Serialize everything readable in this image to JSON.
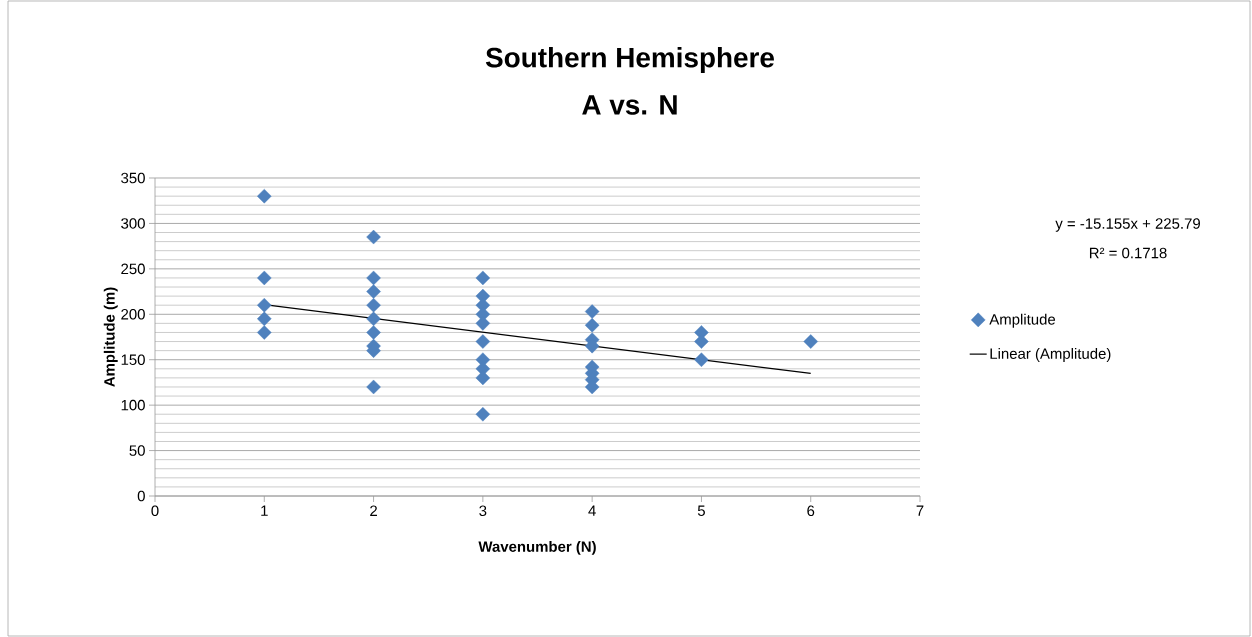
{
  "chart_data": {
    "type": "scatter",
    "title": "Southern Hemisphere",
    "subtitle": "A vs. N",
    "xlabel": "Wavenumber (N)",
    "ylabel": "Amplitude (m)",
    "series": [
      {
        "name": "Amplitude",
        "color": "#4f81bd",
        "marker": "diamond",
        "x": [
          1,
          1,
          1,
          1,
          1,
          2,
          2,
          2,
          2,
          2,
          2,
          2,
          2,
          2,
          3,
          3,
          3,
          3,
          3,
          3,
          3,
          3,
          3,
          3,
          4,
          4,
          4,
          4,
          4,
          4,
          4,
          4,
          5,
          5,
          5,
          6
        ],
        "values": [
          330,
          240,
          210,
          195,
          180,
          285,
          240,
          225,
          210,
          195,
          180,
          165,
          160,
          120,
          240,
          220,
          210,
          200,
          190,
          170,
          150,
          140,
          130,
          90,
          203,
          188,
          172,
          165,
          142,
          135,
          128,
          120,
          180,
          170,
          150,
          170
        ]
      },
      {
        "name": "Linear (Amplitude)",
        "type": "line",
        "color": "#000000",
        "marker": "none",
        "x": [
          1,
          6
        ],
        "values": [
          210.6,
          134.9
        ]
      }
    ],
    "annotations": [
      "y = -15.155x + 225.79",
      "R² = 0.1718"
    ],
    "xlim": [
      0,
      7
    ],
    "ylim": [
      0,
      350
    ],
    "xticks": [
      0,
      1,
      2,
      3,
      4,
      5,
      6,
      7
    ],
    "yticks": [
      0,
      50,
      100,
      150,
      200,
      250,
      300,
      350
    ],
    "grid": "y",
    "legend": "right"
  }
}
